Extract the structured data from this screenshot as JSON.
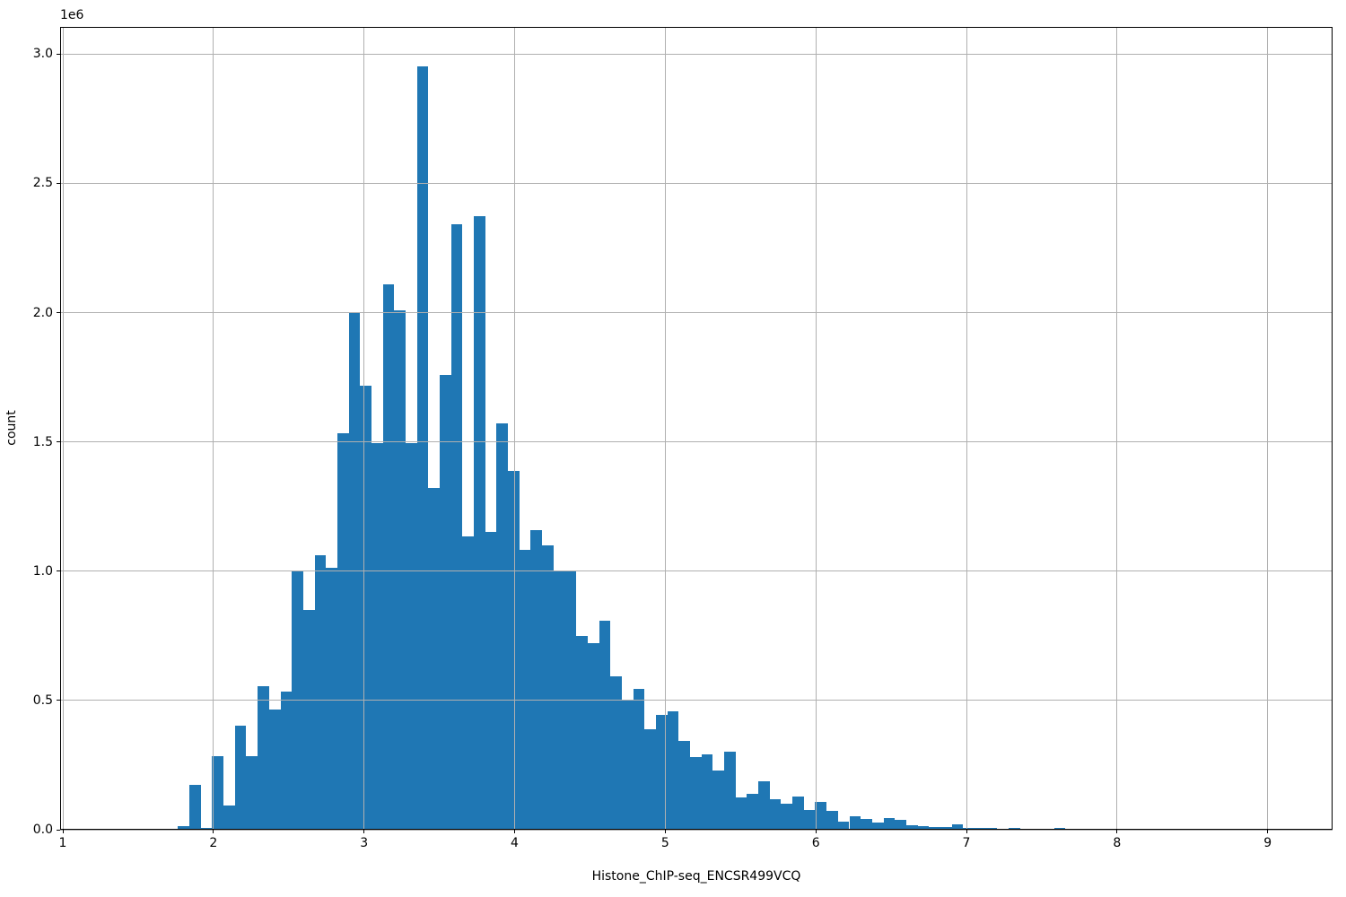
{
  "figure": {
    "background_color": "#ffffff",
    "text_color": "#000000"
  },
  "chart_data": {
    "type": "bar",
    "subtype": "histogram",
    "title": "",
    "xlabel": "Histone_ChIP-seq_ENCSR499VCQ",
    "ylabel": "count",
    "offset_text": "1e6",
    "bar_color": "#1f77b4",
    "grid_color": "#b0b0b0",
    "grid_on": true,
    "grid_above_bars": true,
    "xlim": [
      0.982,
      9.431
    ],
    "ylim": [
      0,
      3105000
    ],
    "x_tick_values": [
      1,
      2,
      3,
      4,
      5,
      6,
      7,
      8,
      9
    ],
    "x_tick_labels": [
      "1",
      "2",
      "3",
      "4",
      "5",
      "6",
      "7",
      "8",
      "9"
    ],
    "y_tick_values": [
      0,
      500000,
      1000000,
      1500000,
      2000000,
      2500000,
      3000000
    ],
    "y_tick_labels": [
      "0.0",
      "0.5",
      "1.0",
      "1.5",
      "2.0",
      "2.5",
      "3.0"
    ],
    "bin_start": 1.765,
    "bin_width": 0.07555,
    "counts": [
      13000,
      173000,
      6000,
      283000,
      92000,
      401000,
      283000,
      555000,
      466000,
      534000,
      1000000,
      851000,
      1060000,
      1013000,
      1534000,
      2000000,
      1719000,
      1494000,
      2108000,
      2009000,
      1494000,
      2954000,
      1321000,
      1760000,
      2341000,
      1133000,
      2372000,
      1152000,
      1570000,
      1387000,
      1081000,
      1158000,
      1100000,
      1000000,
      1000000,
      749000,
      722000,
      809000,
      592000,
      503000,
      543000,
      387000,
      445000,
      457000,
      343000,
      280000,
      291000,
      228000,
      301000,
      124000,
      139000,
      187000,
      118000,
      101000,
      127000,
      75000,
      106000,
      72000,
      31000,
      52000,
      43000,
      27000,
      46000,
      37000,
      17000,
      14000,
      10000,
      10000,
      22000,
      8000,
      8000,
      8000,
      5000,
      6000,
      4000,
      3000,
      3000,
      6000,
      4000,
      2000
    ]
  }
}
